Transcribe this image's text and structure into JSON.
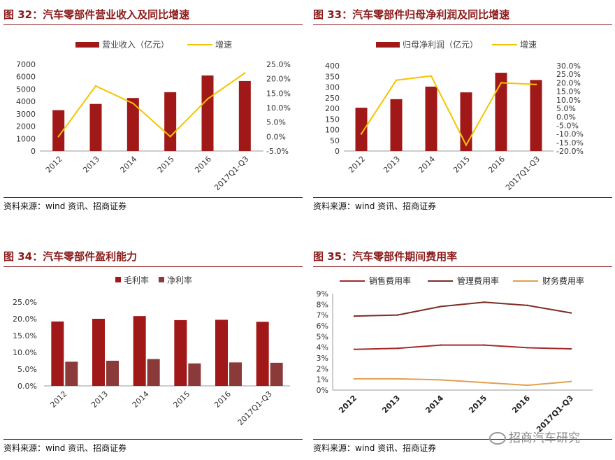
{
  "charts_meta": [
    {
      "title": "图 32：汽车零部件营业收入及同比增速",
      "source": "资料来源：wind 资讯、招商证券"
    },
    {
      "title": "图 33：汽车零部件归母净利润及同比增速",
      "source": "资料来源：wind 资讯、招商证券"
    },
    {
      "title": "图 34：汽车零部件盈利能力",
      "source": "资料来源：wind 资讯、招商证券"
    },
    {
      "title": "图 35：汽车零部件期间费用率",
      "source": "资料来源：wind 资讯、招商证券"
    }
  ],
  "watermark": "招商汽车研究",
  "chart_data": [
    {
      "type": "bar",
      "title": "图 32：汽车零部件营业收入及同比增速",
      "categories": [
        "2012",
        "2013",
        "2014",
        "2015",
        "2016",
        "2017Q1-Q3"
      ],
      "ylim": [
        0,
        7000
      ],
      "yticks": [
        "0",
        "1000",
        "2000",
        "3000",
        "4000",
        "5000",
        "6000",
        "7000"
      ],
      "y2lim": [
        -5,
        25
      ],
      "y2ticks": [
        "-5.0%",
        "0.0%",
        "5.0%",
        "10.0%",
        "15.0%",
        "20.0%",
        "25.0%"
      ],
      "series": [
        {
          "name": "营业收入（亿元）",
          "type": "bar",
          "axis": "left",
          "color": "#a01818",
          "values": [
            3300,
            3800,
            4280,
            4750,
            6100,
            5650
          ]
        },
        {
          "name": "增速",
          "type": "line",
          "axis": "right",
          "color": "#f5c400",
          "values": [
            0,
            17.5,
            11.5,
            0,
            13,
            22
          ]
        }
      ]
    },
    {
      "type": "bar",
      "title": "图 33：汽车零部件归母净利润及同比增速",
      "categories": [
        "2012",
        "2013",
        "2014",
        "2015",
        "2016",
        "2017Q1-Q3"
      ],
      "ylim": [
        0,
        400
      ],
      "yticks": [
        "0",
        "50",
        "100",
        "150",
        "200",
        "250",
        "300",
        "350",
        "400"
      ],
      "y2lim": [
        -20,
        30
      ],
      "y2ticks": [
        "-20.0%",
        "-15.0%",
        "-10.0%",
        "-5.0%",
        "0.0%",
        "5.0%",
        "10.0%",
        "15.0%",
        "20.0%",
        "25.0%",
        "30.0%"
      ],
      "series": [
        {
          "name": "归母净利润（亿元）",
          "type": "bar",
          "axis": "left",
          "color": "#a01818",
          "values": [
            203,
            243,
            302,
            275,
            367,
            333
          ]
        },
        {
          "name": "增速",
          "type": "line",
          "axis": "right",
          "color": "#f5c400",
          "values": [
            -10,
            21.5,
            24,
            -16.5,
            20,
            19
          ]
        }
      ]
    },
    {
      "type": "bar",
      "title": "图 34：汽车零部件盈利能力",
      "categories": [
        "2012",
        "2013",
        "2014",
        "2015",
        "2016",
        "2017Q1-Q3"
      ],
      "ylim": [
        0,
        25
      ],
      "yticks": [
        "0.0%",
        "5.0%",
        "10.0%",
        "15.0%",
        "20.0%",
        "25.0%"
      ],
      "series": [
        {
          "name": "毛利率",
          "color": "#a01818",
          "values": [
            19.2,
            20.0,
            20.8,
            19.6,
            19.7,
            19.1
          ]
        },
        {
          "name": "净利率",
          "color": "#8b3a3a",
          "values": [
            7.2,
            7.5,
            8.0,
            6.7,
            7.0,
            6.9
          ]
        }
      ]
    },
    {
      "type": "line",
      "title": "图 35：汽车零部件期间费用率",
      "categories": [
        "2012",
        "2013",
        "2014",
        "2015",
        "2016",
        "2017Q1-Q3"
      ],
      "ylim": [
        0,
        9
      ],
      "yticks": [
        "0%",
        "1%",
        "2%",
        "3%",
        "4%",
        "5%",
        "6%",
        "7%",
        "8%",
        "9%"
      ],
      "series": [
        {
          "name": "销售费用率",
          "color": "#a52a2a",
          "values": [
            3.8,
            3.9,
            4.2,
            4.2,
            3.95,
            3.85
          ]
        },
        {
          "name": "管理费用率",
          "color": "#7b2d26",
          "values": [
            6.9,
            7.0,
            7.8,
            8.2,
            7.9,
            7.2
          ]
        },
        {
          "name": "财务费用率",
          "color": "#e0a050",
          "values": [
            1.05,
            1.05,
            0.95,
            0.7,
            0.45,
            0.8
          ]
        }
      ]
    }
  ]
}
